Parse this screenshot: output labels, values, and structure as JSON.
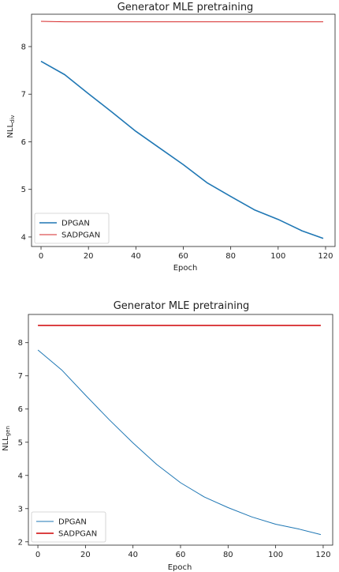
{
  "chart_data": [
    {
      "type": "line",
      "title": "Generator MLE pretraining",
      "xlabel": "Epoch",
      "ylabel": "NLL",
      "ylabel_sub": "div",
      "xlim": [
        -4,
        124
      ],
      "ylim": [
        3.8,
        8.68
      ],
      "xticks": [
        0,
        20,
        40,
        60,
        80,
        100,
        120
      ],
      "yticks": [
        4,
        5,
        6,
        7,
        8
      ],
      "grid": false,
      "legend": "lower-left",
      "series": [
        {
          "name": "DPGAN",
          "color": "#1f77b4",
          "width": 1.6,
          "x": [
            0,
            10,
            20,
            30,
            40,
            50,
            60,
            70,
            80,
            90,
            100,
            110,
            119
          ],
          "y": [
            7.69,
            7.41,
            7.01,
            6.62,
            6.22,
            5.87,
            5.52,
            5.14,
            4.85,
            4.57,
            4.37,
            4.13,
            3.97
          ]
        },
        {
          "name": "SADPGAN",
          "color": "#d62728",
          "width": 1.0,
          "x": [
            0,
            10,
            20,
            30,
            40,
            50,
            60,
            70,
            80,
            90,
            100,
            110,
            119
          ],
          "y": [
            8.53,
            8.52,
            8.52,
            8.52,
            8.52,
            8.52,
            8.52,
            8.52,
            8.52,
            8.52,
            8.52,
            8.52,
            8.52
          ]
        }
      ]
    },
    {
      "type": "line",
      "title": "Generator MLE pretraining",
      "xlabel": "Epoch",
      "ylabel": "NLL",
      "ylabel_sub": "gen",
      "xlim": [
        -4,
        124
      ],
      "ylim": [
        1.9,
        8.85
      ],
      "xticks": [
        0,
        20,
        40,
        60,
        80,
        100,
        120
      ],
      "yticks": [
        2,
        3,
        4,
        5,
        6,
        7,
        8
      ],
      "grid": false,
      "legend": "lower-left",
      "series": [
        {
          "name": "DPGAN",
          "color": "#1f77b4",
          "width": 1.0,
          "x": [
            0,
            10,
            20,
            30,
            40,
            50,
            60,
            70,
            80,
            90,
            100,
            110,
            119
          ],
          "y": [
            7.78,
            7.18,
            6.42,
            5.68,
            4.98,
            4.33,
            3.78,
            3.35,
            3.03,
            2.75,
            2.53,
            2.38,
            2.22
          ]
        },
        {
          "name": "SADPGAN",
          "color": "#d62728",
          "width": 1.8,
          "x": [
            0,
            10,
            20,
            30,
            40,
            50,
            60,
            70,
            80,
            90,
            100,
            110,
            119
          ],
          "y": [
            8.52,
            8.52,
            8.52,
            8.52,
            8.52,
            8.52,
            8.52,
            8.52,
            8.52,
            8.52,
            8.52,
            8.52,
            8.52
          ]
        }
      ]
    }
  ]
}
